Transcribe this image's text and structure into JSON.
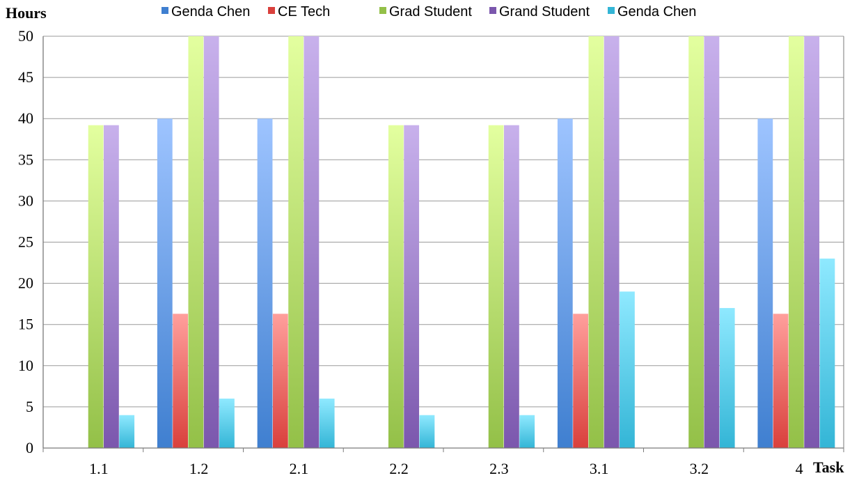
{
  "colors": {
    "series_top": [
      "#9ec4ff",
      "#ff9f9c",
      "#e3ff9f",
      "#c8b1ec",
      "#8fe9ff"
    ],
    "series_bottom": [
      "#3f7fd0",
      "#d9403c",
      "#93c048",
      "#7b57ad",
      "#33b5d6"
    ]
  },
  "chart_data": {
    "type": "bar",
    "xlabel": "Task",
    "ylabel": "Hours",
    "ylim": [
      0,
      50
    ],
    "yticks": [
      0,
      5,
      10,
      15,
      20,
      25,
      30,
      35,
      40,
      45,
      50
    ],
    "grid": true,
    "legend_position": "top",
    "categories": [
      "1.1",
      "1.2",
      "2.1",
      "2.2",
      "2.3",
      "3.1",
      "3.2",
      "4"
    ],
    "series": [
      {
        "name": "Genda Chen",
        "values": [
          0,
          40,
          40,
          0,
          0,
          40,
          0,
          40
        ]
      },
      {
        "name": "CE Tech",
        "values": [
          0,
          16.3,
          16.3,
          0,
          0,
          16.3,
          0,
          16.3
        ]
      },
      {
        "name": "Grad Student",
        "values": [
          39.2,
          50,
          50,
          39.2,
          39.2,
          50,
          50,
          50
        ]
      },
      {
        "name": "Grand Student",
        "values": [
          39.2,
          50,
          50,
          39.2,
          39.2,
          50,
          50,
          50
        ]
      },
      {
        "name": "Genda Chen",
        "values": [
          4,
          6,
          6,
          4,
          4,
          19,
          17,
          23
        ]
      }
    ]
  }
}
